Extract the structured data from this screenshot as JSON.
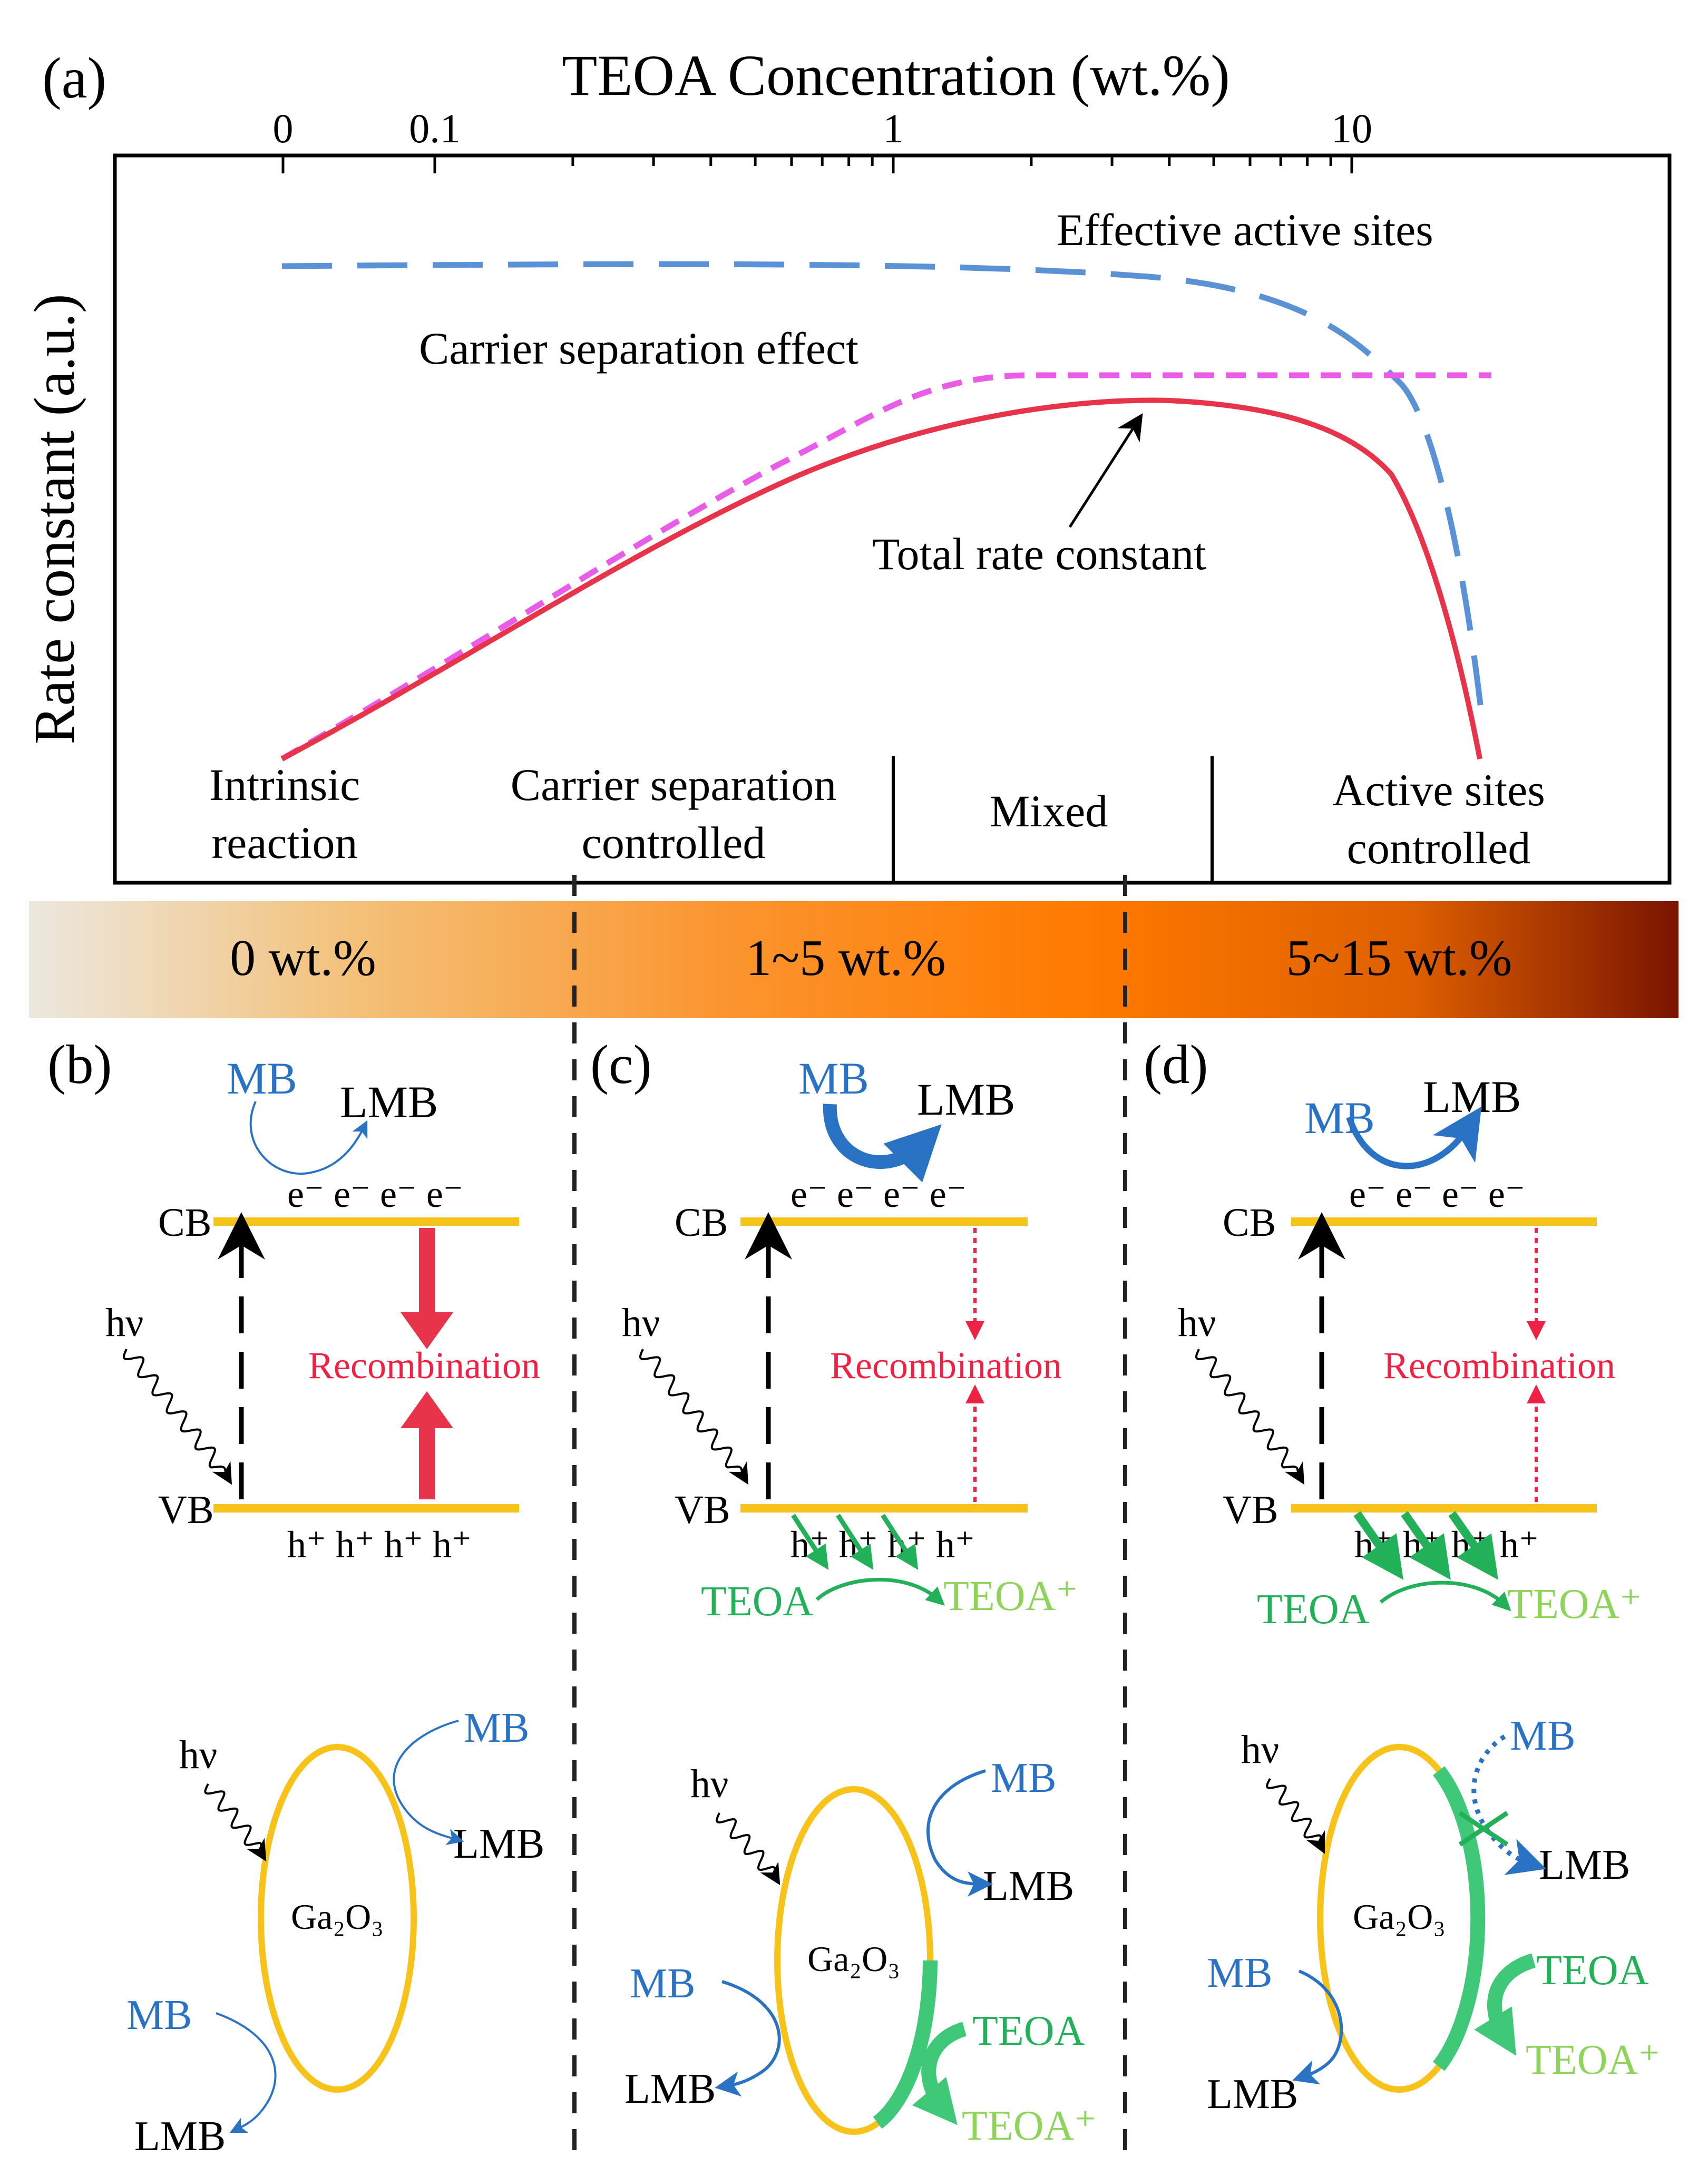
{
  "colors": {
    "blue": "#2a72c3",
    "dashed_blue": "#5b92d6",
    "magenta": "#e85ce8",
    "red": "#e8344a",
    "recomb": "#ee2244",
    "band": "#f7c21a",
    "green": "#22b058",
    "light_green": "#8fd45a",
    "teoa_green": "#3ec878"
  },
  "panel_a": {
    "label": "(a)",
    "top_axis_title": "TEOA Concentration (wt.%)",
    "y_axis_title": "Rate constant (a.u.)",
    "ticks": [
      "0",
      "0.1",
      "1",
      "10"
    ],
    "curve_labels": {
      "effective": "Effective active sites",
      "carrier": "Carrier separation effect",
      "total": "Total rate constant"
    },
    "regions": {
      "intrinsic_line1": "Intrinsic",
      "intrinsic_line2": "reaction",
      "carrier_line1": "Carrier separation",
      "carrier_line2": "controlled",
      "mixed": "Mixed",
      "active_line1": "Active sites",
      "active_line2": "controlled"
    }
  },
  "chart_data": {
    "type": "line",
    "title": "",
    "xlabel": "TEOA Concentration (wt.%)",
    "ylabel": "Rate constant (a.u.)",
    "x_scale": "log",
    "x_ticks": [
      "0",
      "0.1",
      "1",
      "10"
    ],
    "series": [
      {
        "name": "Effective active sites",
        "style": "long-dash",
        "x": [
          0,
          0.1,
          1,
          3,
          6,
          10,
          12,
          15,
          20
        ],
        "y": [
          0.86,
          0.86,
          0.855,
          0.84,
          0.81,
          0.74,
          0.62,
          0.46,
          0.22
        ]
      },
      {
        "name": "Carrier separation effect",
        "style": "short-dash",
        "x": [
          0,
          0.1,
          0.3,
          1,
          2,
          5,
          20
        ],
        "y": [
          0.16,
          0.33,
          0.5,
          0.64,
          0.68,
          0.68,
          0.68
        ]
      },
      {
        "name": "Total rate constant",
        "style": "solid",
        "x": [
          0,
          0.1,
          0.3,
          1,
          3,
          6,
          10,
          12,
          15,
          20
        ],
        "y": [
          0.16,
          0.32,
          0.47,
          0.6,
          0.645,
          0.63,
          0.56,
          0.5,
          0.36,
          0.2
        ]
      }
    ],
    "regions": [
      "Intrinsic reaction",
      "Carrier separation controlled",
      "Mixed",
      "Active sites controlled"
    ]
  },
  "gradient_bar": {
    "stops": [
      "#ece8df",
      "#f4c078",
      "#fb9530",
      "#ff7a00",
      "#de5f00",
      "#7a1400"
    ],
    "labels": [
      "0 wt.%",
      "1~5 wt.%",
      "5~15 wt.%"
    ]
  },
  "panels": [
    {
      "label": "(b)"
    },
    {
      "label": "(c)"
    },
    {
      "label": "(d)"
    }
  ],
  "common": {
    "mb": "MB",
    "lmb": "LMB",
    "cb": "CB",
    "vb": "VB",
    "hv": "hν",
    "electron": "e⁻",
    "hole": "h⁺",
    "recombination": "Recombination",
    "teoa": "TEOA",
    "teoa_plus": "TEOA⁺",
    "ga2o3": "Ga₂O₃"
  }
}
